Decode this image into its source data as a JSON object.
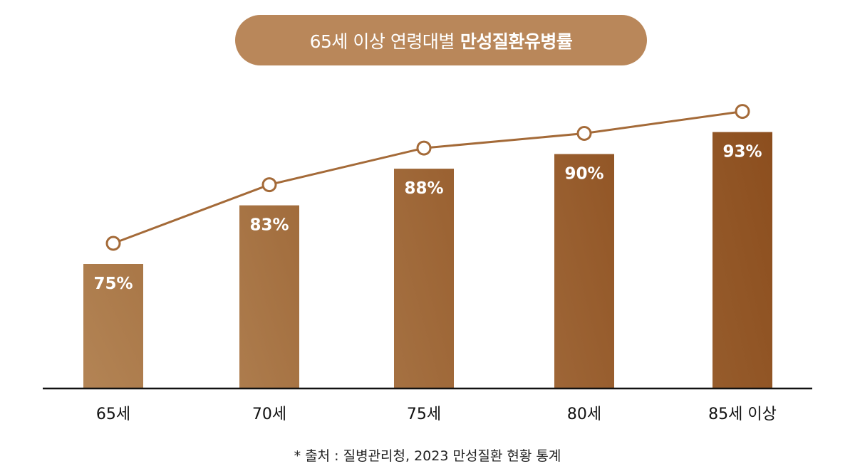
{
  "title": {
    "regular": "65세 이상 연령대별",
    "bold": "만성질환유병률"
  },
  "source": "* 출처 : 질병관리청, 2023 만성질환 현황 통계",
  "colors": {
    "title_bg": "#b9875a",
    "bar_light": "#b38455",
    "bar_dark": "#8c4e1e",
    "line": "#a46a38",
    "axis": "#111111"
  },
  "chart_data": {
    "type": "bar",
    "categories": [
      "65세",
      "70세",
      "75세",
      "80세",
      "85세 이상"
    ],
    "values": [
      75,
      83,
      88,
      90,
      93
    ],
    "value_labels": [
      "75%",
      "83%",
      "88%",
      "90%",
      "93%"
    ],
    "overlay_line": {
      "type": "line",
      "values": [
        75,
        83,
        88,
        90,
        93
      ],
      "markers": "hollow-circle"
    },
    "title": "65세 이상 연령대별 만성질환유병률",
    "xlabel": "",
    "ylabel": "",
    "unit": "%",
    "grid": false,
    "legend": "none"
  }
}
